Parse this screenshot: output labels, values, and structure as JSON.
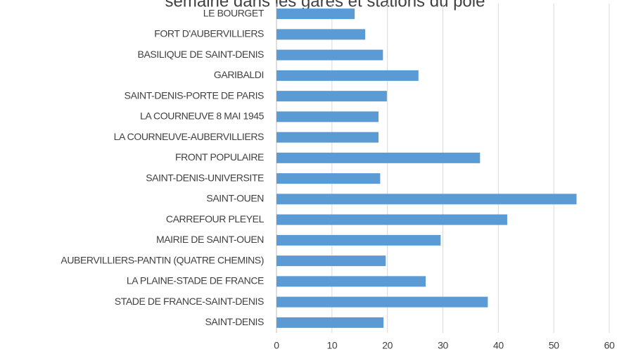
{
  "chart_data": {
    "type": "barh",
    "title": "semaine dans les gares et stations du pole",
    "categories": [
      "LE BOURGET",
      "FORT D'AUBERVILLIERS",
      "BASILIQUE DE SAINT-DENIS",
      "GARIBALDI",
      "SAINT-DENIS-PORTE DE PARIS",
      "LA COURNEUVE 8 MAI 1945",
      "LA COURNEUVE-AUBERVILLIERS",
      "FRONT POPULAIRE",
      "SAINT-DENIS-UNIVERSITE",
      "SAINT-OUEN",
      "CARREFOUR PLEYEL",
      "MAIRIE DE SAINT-OUEN",
      "AUBERVILLIERS-PANTIN (QUATRE CHEMINS)",
      "LA PLAINE-STADE DE FRANCE",
      "STADE DE FRANCE-SAINT-DENIS",
      "SAINT-DENIS"
    ],
    "values": [
      14.1,
      16.0,
      19.2,
      25.6,
      19.9,
      18.4,
      18.4,
      36.7,
      18.7,
      54.1,
      41.6,
      29.6,
      19.7,
      26.9,
      38.1,
      19.3
    ],
    "color": "#5b9bd5",
    "xlim": [
      0,
      60
    ],
    "xticks": [
      0,
      10,
      20,
      30,
      40,
      50,
      60
    ],
    "grid": true
  }
}
